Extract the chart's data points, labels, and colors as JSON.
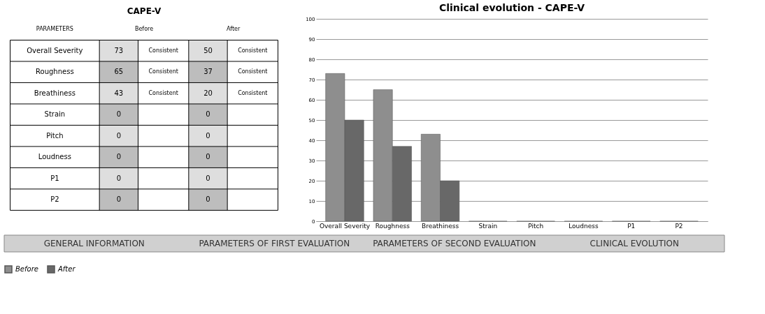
{
  "chart_data": [
    {
      "type": "other",
      "title": "CAPE-V",
      "annotations": [
        "PARAMETERS",
        "Before",
        "After",
        "Overall Severity",
        "73",
        "Consistent",
        "50",
        "Consistent",
        "Roughness",
        "65",
        "Consistent",
        "37",
        "Consistent",
        "Breathiness",
        "43",
        "Consistent",
        "20",
        "Consistent",
        "Strain",
        "0",
        null,
        "0",
        null,
        "Pitch",
        "0",
        null,
        "0",
        null,
        "Loudness",
        "0",
        null,
        "0",
        null,
        "P1",
        "0",
        null,
        "0",
        null,
        "P2",
        "0",
        null,
        "0",
        null
      ]
    },
    {
      "type": "bar",
      "title": "Clinical evolution - CAPE-V",
      "categories": [
        "Overall Severity",
        "Roughness",
        "Breathiness",
        "Strain",
        "Pitch",
        "Loudness",
        "P1",
        "P2"
      ],
      "series": [
        {
          "name": "Before",
          "color": "#8e8e8e",
          "values": [
            73,
            65,
            43,
            0,
            0,
            0,
            0,
            0
          ]
        },
        {
          "name": "After",
          "color": "#686868",
          "values": [
            50,
            37,
            20,
            0,
            0,
            0,
            0,
            0
          ]
        }
      ],
      "ylim": [
        0,
        100
      ],
      "yticks": [
        0,
        10,
        20,
        30,
        40,
        50,
        60,
        70,
        80,
        90,
        100
      ],
      "grid": "y",
      "legend": "bottom",
      "annotations": [
        "GENERAL INFORMATION",
        "PARAMETERS OF FIRST EVALUATION",
        "PARAMETERS OF SECOND EVALUATION",
        "CLINICAL EVOLUTION"
      ]
    }
  ]
}
